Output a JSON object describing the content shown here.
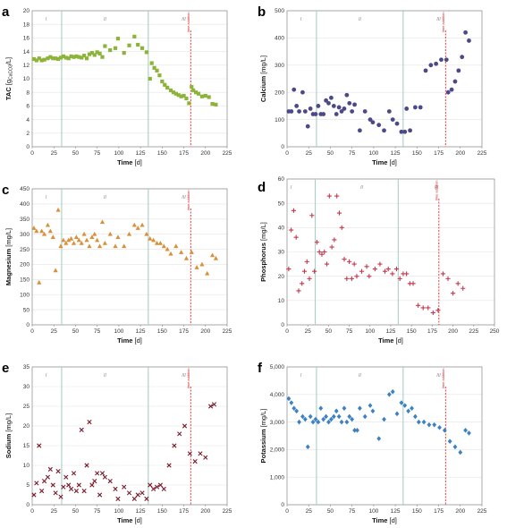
{
  "colors": {
    "A": "#8db43a",
    "B": "#4b4988",
    "C": "#d8913a",
    "D": "#c4384d",
    "E": "#7a1c2c",
    "F": "#3c82c2",
    "phase_line": "#a9cfc6",
    "lime_line": "#e02828",
    "grid": "#e4e4e4",
    "axis": "#888888"
  },
  "chart_data": [
    {
      "type": "scatter",
      "panel": "a",
      "ylabel_main": "TAC",
      "ylabel_unit_pre": "[g",
      "ylabel_sub": "CaCO3",
      "ylabel_unit_post": "/L]",
      "xlabel_main": "Time",
      "xlabel_unit": "[d]",
      "xlim": [
        0,
        225
      ],
      "ylim": [
        0,
        20
      ],
      "xticks": [
        "0",
        "25",
        "50",
        "75",
        "100",
        "125",
        "150",
        "175",
        "200",
        "225"
      ],
      "yticks": [
        "0",
        "2",
        "4",
        "6",
        "8",
        "10",
        "12",
        "14",
        "16",
        "18",
        "20"
      ],
      "ytick_values": [
        0,
        2,
        4,
        6,
        8,
        10,
        12,
        14,
        16,
        18,
        20
      ],
      "phase_lines": [
        34,
        134
      ],
      "phase_labels": [
        "I",
        "II",
        "III"
      ],
      "phase_label_x": [
        16,
        84,
        175
      ],
      "lime_line": 183,
      "annotation": "lime addition",
      "marker": "square",
      "x": [
        2,
        5,
        8,
        11,
        14,
        18,
        21,
        24,
        27,
        30,
        33,
        36,
        39,
        42,
        45,
        48,
        51,
        54,
        57,
        60,
        63,
        66,
        69,
        72,
        75,
        78,
        81,
        84,
        90,
        96,
        99,
        106,
        112,
        118,
        122,
        127,
        132,
        136,
        138,
        141,
        144,
        147,
        150,
        153,
        156,
        160,
        163,
        166,
        169,
        172,
        175,
        178,
        181,
        184,
        186,
        189,
        192,
        196,
        200,
        204,
        208,
        212
      ],
      "y": [
        12.9,
        12.7,
        13.0,
        12.7,
        12.8,
        13.0,
        13.2,
        13.0,
        13.0,
        12.9,
        13.1,
        13.3,
        13.1,
        13.0,
        13.3,
        13.2,
        13.3,
        13.2,
        13.1,
        13.4,
        13.0,
        13.6,
        13.8,
        13.5,
        13.9,
        13.7,
        13.2,
        14.8,
        14.2,
        14.5,
        15.9,
        13.8,
        14.9,
        16.2,
        15.0,
        14.5,
        13.9,
        10.0,
        12.3,
        11.6,
        11.2,
        10.5,
        9.6,
        9.1,
        8.7,
        8.3,
        8.0,
        7.8,
        7.6,
        7.4,
        7.5,
        7.1,
        6.4,
        8.8,
        8.3,
        8.0,
        7.8,
        7.4,
        7.5,
        7.3,
        6.3,
        6.2
      ]
    },
    {
      "type": "scatter",
      "panel": "b",
      "ylabel_main": "Calcium",
      "ylabel_unit": "[mg/L]",
      "xlabel_main": "Time",
      "xlabel_unit": "[d]",
      "xlim": [
        0,
        225
      ],
      "ylim": [
        0,
        500
      ],
      "xticks": [
        "0",
        "25",
        "50",
        "75",
        "100",
        "125",
        "150",
        "175",
        "200",
        "225"
      ],
      "yticks": [
        "0",
        "100",
        "200",
        "300",
        "400",
        "500"
      ],
      "ytick_values": [
        0,
        100,
        200,
        300,
        400,
        500
      ],
      "phase_lines": [
        34,
        134
      ],
      "phase_labels": [
        "I",
        "II",
        "III"
      ],
      "phase_label_x": [
        16,
        84,
        175
      ],
      "lime_line": 183,
      "annotation": "lime addition",
      "marker": "circle",
      "x": [
        2,
        5,
        8,
        11,
        14,
        18,
        21,
        24,
        27,
        30,
        33,
        36,
        39,
        42,
        45,
        48,
        51,
        54,
        57,
        60,
        63,
        66,
        69,
        72,
        75,
        78,
        84,
        90,
        96,
        99,
        106,
        112,
        118,
        122,
        127,
        132,
        136,
        138,
        142,
        148,
        154,
        160,
        166,
        172,
        178,
        184,
        186,
        190,
        194,
        198,
        202,
        206,
        210
      ],
      "y": [
        130,
        130,
        210,
        150,
        130,
        200,
        130,
        75,
        140,
        120,
        120,
        150,
        120,
        120,
        170,
        160,
        180,
        150,
        120,
        145,
        130,
        140,
        190,
        160,
        130,
        155,
        60,
        130,
        100,
        90,
        80,
        60,
        130,
        100,
        85,
        55,
        55,
        140,
        60,
        145,
        145,
        280,
        300,
        305,
        320,
        320,
        200,
        210,
        240,
        280,
        330,
        420,
        390
      ]
    },
    {
      "type": "scatter",
      "panel": "c",
      "ylabel_main": "Magnesium",
      "ylabel_unit": "[mg/L]",
      "xlabel_main": "Time",
      "xlabel_unit": "[d]",
      "xlim": [
        0,
        225
      ],
      "ylim": [
        0,
        450
      ],
      "xticks": [
        "0",
        "25",
        "50",
        "75",
        "100",
        "125",
        "150",
        "175",
        "200",
        "225"
      ],
      "yticks": [
        "0",
        "50",
        "100",
        "150",
        "200",
        "250",
        "300",
        "350",
        "400",
        "450"
      ],
      "ytick_values": [
        0,
        50,
        100,
        150,
        200,
        250,
        300,
        350,
        400,
        450
      ],
      "phase_lines": [
        34,
        134
      ],
      "phase_labels": [
        "I",
        "II",
        "III"
      ],
      "phase_label_x": [
        16,
        84,
        175
      ],
      "lime_line": 183,
      "annotation": "lime addition",
      "marker": "triangle",
      "x": [
        2,
        5,
        8,
        11,
        14,
        18,
        21,
        24,
        27,
        30,
        33,
        36,
        39,
        42,
        45,
        48,
        51,
        54,
        57,
        60,
        63,
        66,
        69,
        72,
        75,
        78,
        81,
        84,
        90,
        96,
        99,
        106,
        112,
        118,
        122,
        127,
        132,
        136,
        140,
        144,
        148,
        152,
        156,
        160,
        166,
        172,
        178,
        184,
        190,
        196,
        202,
        208,
        212
      ],
      "y": [
        320,
        310,
        140,
        310,
        300,
        330,
        310,
        290,
        180,
        380,
        260,
        280,
        270,
        280,
        285,
        270,
        290,
        280,
        270,
        300,
        280,
        260,
        290,
        300,
        280,
        260,
        340,
        270,
        300,
        260,
        290,
        260,
        300,
        330,
        320,
        330,
        300,
        285,
        280,
        270,
        270,
        260,
        250,
        235,
        260,
        240,
        220,
        240,
        190,
        200,
        170,
        230,
        220
      ]
    },
    {
      "type": "scatter",
      "panel": "d",
      "ylabel_main": "Phosphorus",
      "ylabel_unit": "[mg/L]",
      "xlabel_main": "Time",
      "xlabel_unit": "[d]",
      "xlim": [
        0,
        250
      ],
      "ylim": [
        0,
        60
      ],
      "xticks": [
        "0",
        "25",
        "50",
        "75",
        "100",
        "125",
        "150",
        "175",
        "200",
        "225",
        "250"
      ],
      "yticks": [
        "0",
        "10",
        "20",
        "30",
        "40",
        "50",
        "60"
      ],
      "ytick_values": [
        0,
        10,
        20,
        30,
        40,
        50,
        60
      ],
      "phase_lines": [
        34,
        134
      ],
      "phase_labels": [
        "I",
        "II",
        "III"
      ],
      "phase_label_x": [
        5,
        90,
        180
      ],
      "lime_line": 183,
      "annotation": "lime addition",
      "marker": "plus",
      "x": [
        2,
        5,
        8,
        11,
        14,
        18,
        21,
        24,
        27,
        30,
        33,
        36,
        39,
        42,
        45,
        48,
        51,
        54,
        57,
        60,
        63,
        66,
        69,
        72,
        75,
        78,
        81,
        84,
        90,
        96,
        99,
        106,
        112,
        118,
        122,
        127,
        132,
        136,
        140,
        144,
        148,
        152,
        158,
        164,
        170,
        176,
        182,
        188,
        194,
        200,
        206,
        212
      ],
      "y": [
        23,
        39,
        47,
        36,
        14,
        17,
        22,
        26,
        19,
        45,
        22,
        34,
        30,
        29,
        30,
        25,
        53,
        32,
        35,
        53,
        46,
        40,
        27,
        19,
        26,
        19,
        25,
        20,
        22,
        24,
        20,
        23,
        25,
        22,
        23,
        21,
        23,
        19,
        21,
        21,
        17,
        17,
        8,
        7,
        7,
        5,
        6,
        21,
        19,
        13,
        17,
        15
      ]
    },
    {
      "type": "scatter",
      "panel": "e",
      "ylabel_main": "Sodium",
      "ylabel_unit": "[mg/L]",
      "xlabel_main": "Time",
      "xlabel_unit": "[d]",
      "xlim": [
        0,
        225
      ],
      "ylim": [
        0,
        35
      ],
      "xticks": [
        "0",
        "25",
        "50",
        "75",
        "100",
        "125",
        "150",
        "175",
        "200",
        "225"
      ],
      "yticks": [
        "0",
        "5",
        "10",
        "15",
        "20",
        "25",
        "30",
        "35"
      ],
      "ytick_values": [
        0,
        5,
        10,
        15,
        20,
        25,
        30,
        35
      ],
      "phase_lines": [
        34,
        134
      ],
      "phase_labels": [
        "I",
        "II",
        "III"
      ],
      "phase_label_x": [
        16,
        84,
        175
      ],
      "lime_line": 183,
      "annotation": "lime addition",
      "marker": "x",
      "x": [
        2,
        5,
        8,
        11,
        14,
        18,
        21,
        24,
        27,
        30,
        33,
        36,
        39,
        42,
        45,
        48,
        51,
        54,
        57,
        60,
        63,
        66,
        69,
        72,
        75,
        78,
        81,
        84,
        90,
        96,
        99,
        106,
        112,
        118,
        122,
        127,
        132,
        136,
        140,
        144,
        148,
        152,
        158,
        164,
        170,
        176,
        182,
        188,
        194,
        200,
        206,
        210
      ],
      "y": [
        2.5,
        5.5,
        15,
        3.5,
        6,
        7,
        9,
        5,
        3,
        8.5,
        2,
        4.5,
        7,
        5,
        4,
        8,
        3.5,
        5,
        19,
        3.5,
        10,
        21,
        5,
        6,
        8,
        2.5,
        8,
        7,
        6,
        4,
        1.5,
        4.5,
        3,
        1.5,
        2.5,
        3,
        1.5,
        5,
        4,
        4.5,
        5,
        4,
        10,
        15,
        18,
        20,
        13,
        11,
        13,
        12,
        25,
        25.5
      ]
    },
    {
      "type": "scatter",
      "panel": "f",
      "ylabel_main": "Potassium",
      "ylabel_unit": "[mg/L]",
      "xlabel_main": "Time",
      "xlabel_unit": "[d]",
      "xlim": [
        0,
        225
      ],
      "ylim": [
        0,
        5000
      ],
      "xticks": [
        "0",
        "25",
        "50",
        "75",
        "100",
        "125",
        "150",
        "175",
        "200",
        "225"
      ],
      "yticks": [
        "0",
        "1,000",
        "2,000",
        "3,000",
        "4,000",
        "5,000"
      ],
      "ytick_values": [
        0,
        1000,
        2000,
        3000,
        4000,
        5000
      ],
      "phase_lines": [
        34,
        134
      ],
      "phase_labels": [
        "I",
        "II",
        "III"
      ],
      "phase_label_x": [
        16,
        84,
        175
      ],
      "lime_line": 183,
      "annotation": "lime addition",
      "marker": "diamond",
      "x": [
        2,
        5,
        8,
        11,
        14,
        18,
        21,
        24,
        27,
        30,
        33,
        36,
        39,
        42,
        45,
        48,
        51,
        54,
        57,
        60,
        63,
        66,
        69,
        72,
        75,
        78,
        81,
        84,
        90,
        96,
        99,
        106,
        112,
        118,
        122,
        127,
        132,
        136,
        140,
        144,
        148,
        152,
        158,
        164,
        170,
        176,
        182,
        188,
        194,
        200,
        206,
        210
      ],
      "y": [
        3850,
        3700,
        3500,
        3400,
        3000,
        3200,
        3100,
        2100,
        3200,
        3000,
        3100,
        3000,
        3500,
        3100,
        3200,
        3000,
        3100,
        3200,
        3400,
        3200,
        3000,
        3500,
        3000,
        3200,
        3100,
        2700,
        2700,
        3500,
        3200,
        3600,
        3400,
        2400,
        3100,
        4000,
        4100,
        3300,
        3700,
        3600,
        3400,
        3500,
        3200,
        3000,
        3000,
        2900,
        2900,
        2800,
        2700,
        2300,
        2100,
        1900,
        2700,
        2600
      ]
    }
  ]
}
